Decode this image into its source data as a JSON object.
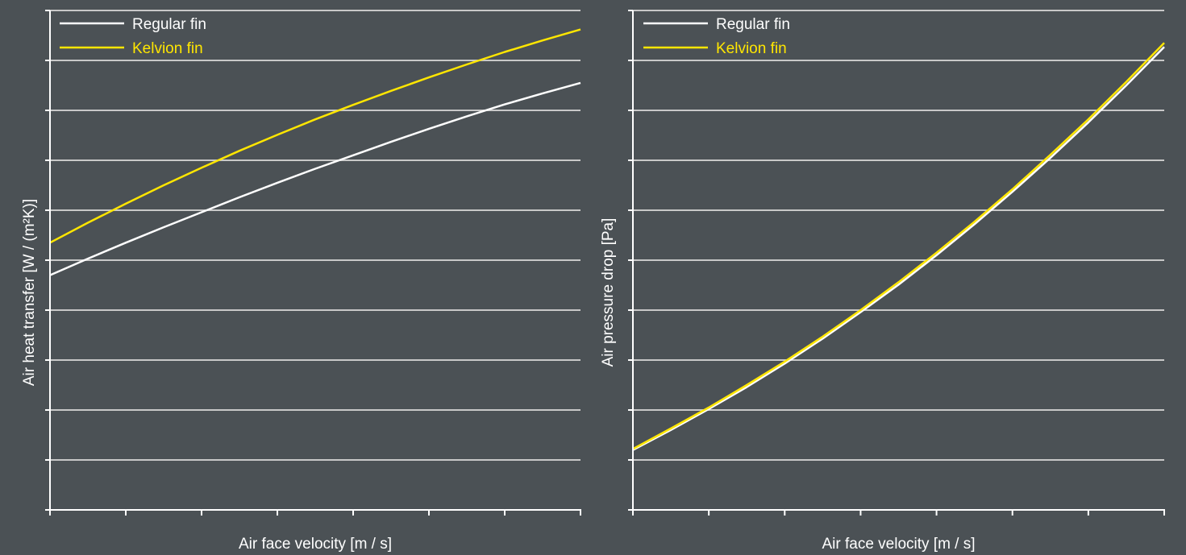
{
  "colors": {
    "background": "#4b5155",
    "axis": "#ffffff",
    "grid": "#c8c8c8",
    "regular": "#ffffff",
    "kelvion": "#ffe600",
    "label": "#ffffff"
  },
  "chart_data": [
    {
      "type": "line",
      "xlabel": "Air face velocity [m / s]",
      "ylabel": "Air heat transfer [W / (m²K)]",
      "xlim": [
        0,
        7
      ],
      "ylim": [
        0,
        10
      ],
      "grid": true,
      "legend_position": "top-left",
      "x_ticks": [
        0,
        1,
        2,
        3,
        4,
        5,
        6,
        7
      ],
      "y_ticks": [
        0,
        1,
        2,
        3,
        4,
        5,
        6,
        7,
        8,
        9,
        10
      ],
      "series": [
        {
          "name": "Regular fin",
          "color": "#ffffff",
          "x": [
            0,
            0.5,
            1,
            1.5,
            2,
            2.5,
            3,
            3.5,
            4,
            4.5,
            5,
            5.5,
            6,
            6.5,
            7
          ],
          "y": [
            4.7,
            5.03,
            5.35,
            5.66,
            5.96,
            6.26,
            6.55,
            6.83,
            7.1,
            7.37,
            7.63,
            7.88,
            8.12,
            8.34,
            8.55
          ]
        },
        {
          "name": "Kelvion fin",
          "color": "#ffe600",
          "x": [
            0,
            0.5,
            1,
            1.5,
            2,
            2.5,
            3,
            3.5,
            4,
            4.5,
            5,
            5.5,
            6,
            6.5,
            7
          ],
          "y": [
            5.35,
            5.75,
            6.13,
            6.5,
            6.85,
            7.19,
            7.51,
            7.82,
            8.11,
            8.39,
            8.66,
            8.92,
            9.17,
            9.4,
            9.62
          ]
        }
      ]
    },
    {
      "type": "line",
      "xlabel": "Air face velocity [m / s]",
      "ylabel": "Air pressure drop [Pa]",
      "xlim": [
        0,
        7
      ],
      "ylim": [
        0,
        10
      ],
      "grid": true,
      "legend_position": "top-left",
      "x_ticks": [
        0,
        1,
        2,
        3,
        4,
        5,
        6,
        7
      ],
      "y_ticks": [
        0,
        1,
        2,
        3,
        4,
        5,
        6,
        7,
        8,
        9,
        10
      ],
      "series": [
        {
          "name": "Regular fin",
          "color": "#ffffff",
          "x": [
            0,
            0.5,
            1,
            1.5,
            2,
            2.5,
            3,
            3.5,
            4,
            4.5,
            5,
            5.5,
            6,
            6.5,
            7
          ],
          "y": [
            1.2,
            1.6,
            2.02,
            2.46,
            2.93,
            3.43,
            3.96,
            4.51,
            5.1,
            5.72,
            6.37,
            7.05,
            7.76,
            8.5,
            9.27
          ]
        },
        {
          "name": "Kelvion fin",
          "color": "#ffe600",
          "x": [
            0,
            0.5,
            1,
            1.5,
            2,
            2.5,
            3,
            3.5,
            4,
            4.5,
            5,
            5.5,
            6,
            6.5,
            7
          ],
          "y": [
            1.22,
            1.63,
            2.05,
            2.5,
            2.97,
            3.47,
            4.0,
            4.56,
            5.15,
            5.77,
            6.42,
            7.11,
            7.82,
            8.57,
            9.35
          ]
        }
      ]
    }
  ]
}
